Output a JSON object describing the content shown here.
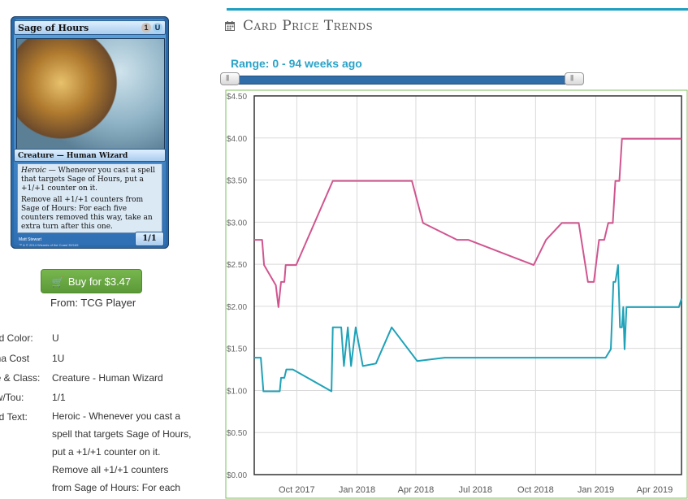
{
  "card": {
    "name": "Sage of Hours",
    "mana": [
      "1",
      "U"
    ],
    "type_line": "Creature — Human Wizard",
    "ability_keyword": "Heroic",
    "ability_1": " — Whenever you cast a spell that targets Sage of Hours, put a +1/+1 counter on it.",
    "ability_2": "Remove all +1/+1 counters from Sage of Hours: For each five counters removed this way, take an extra turn after this one.",
    "pt": "1/1",
    "artist": "Matt Stewart",
    "legal": "™ & © 2014 Wizards of the Coast 39/165"
  },
  "buy": {
    "label": "Buy for $3.47",
    "from": "From: TCG Player"
  },
  "details": {
    "card_color_label": "ard Color:",
    "card_color": "U",
    "mana_cost_label": "ana Cost",
    "mana_cost": "1U",
    "type_label": "pe & Class:",
    "type": "Creature - Human Wizard",
    "powtou_label": "ow/Tou:",
    "powtou": "1/1",
    "text_label": "ard Text:",
    "text_lines": [
      "Heroic - Whenever you cast a",
      "spell that targets Sage of Hours,",
      "put a +1/+1 counter on it.",
      "Remove all +1/+1 counters",
      "from Sage of Hours: For each"
    ]
  },
  "panel": {
    "title": "Card Price Trends",
    "range": "Range: 0 - 94 weeks ago"
  },
  "colors": {
    "accent": "#1ea0c0",
    "foil": "#d0558f",
    "normal": "#1fa2b8"
  },
  "chart_data": {
    "type": "line",
    "ylim": [
      0,
      4.5
    ],
    "y_ticks": [
      "$0.00",
      "$0.50",
      "$1.00",
      "$1.50",
      "$2.00",
      "$2.50",
      "$3.00",
      "$3.50",
      "$4.00",
      "$4.50"
    ],
    "x_ticks": [
      {
        "label": "Oct 2017",
        "x": "2017-10-01"
      },
      {
        "label": "Jan 2018",
        "x": "2018-01-01"
      },
      {
        "label": "Apr 2018",
        "x": "2018-04-01"
      },
      {
        "label": "Jul 2018",
        "x": "2018-07-01"
      },
      {
        "label": "Oct 2018",
        "x": "2018-10-01"
      },
      {
        "label": "Jan 2019",
        "x": "2019-01-01"
      },
      {
        "label": "Apr 2019",
        "x": "2019-04-01"
      }
    ],
    "xlim": [
      "2017-07-28",
      "2019-05-12"
    ],
    "grid": true,
    "series": [
      {
        "color": "#d0558f",
        "points": [
          [
            "2017-07-28",
            2.79
          ],
          [
            "2017-08-09",
            2.79
          ],
          [
            "2017-08-12",
            2.49
          ],
          [
            "2017-08-30",
            2.25
          ],
          [
            "2017-09-03",
            1.99
          ],
          [
            "2017-09-07",
            2.29
          ],
          [
            "2017-09-12",
            2.29
          ],
          [
            "2017-09-14",
            2.49
          ],
          [
            "2017-09-30",
            2.49
          ],
          [
            "2017-11-25",
            3.49
          ],
          [
            "2018-03-26",
            3.49
          ],
          [
            "2018-04-12",
            2.99
          ],
          [
            "2018-06-03",
            2.79
          ],
          [
            "2018-06-20",
            2.79
          ],
          [
            "2018-09-28",
            2.49
          ],
          [
            "2018-10-17",
            2.79
          ],
          [
            "2018-11-10",
            2.99
          ],
          [
            "2018-12-06",
            2.99
          ],
          [
            "2018-12-16",
            2.49
          ],
          [
            "2018-12-20",
            2.29
          ],
          [
            "2018-12-29",
            2.29
          ],
          [
            "2019-01-06",
            2.79
          ],
          [
            "2019-01-14",
            2.79
          ],
          [
            "2019-01-20",
            2.99
          ],
          [
            "2019-01-27",
            2.99
          ],
          [
            "2019-01-31",
            3.49
          ],
          [
            "2019-02-06",
            3.49
          ],
          [
            "2019-02-10",
            3.99
          ],
          [
            "2019-05-12",
            3.99
          ]
        ]
      },
      {
        "color": "#1fa2b8",
        "points": [
          [
            "2017-07-28",
            1.39
          ],
          [
            "2017-08-07",
            1.39
          ],
          [
            "2017-08-11",
            0.99
          ],
          [
            "2017-09-05",
            0.99
          ],
          [
            "2017-09-07",
            1.15
          ],
          [
            "2017-09-12",
            1.15
          ],
          [
            "2017-09-15",
            1.25
          ],
          [
            "2017-09-25",
            1.25
          ],
          [
            "2017-11-23",
            0.99
          ],
          [
            "2017-11-25",
            1.75
          ],
          [
            "2017-12-08",
            1.75
          ],
          [
            "2017-12-12",
            1.29
          ],
          [
            "2017-12-18",
            1.75
          ],
          [
            "2017-12-23",
            1.29
          ],
          [
            "2017-12-30",
            1.75
          ],
          [
            "2018-01-10",
            1.29
          ],
          [
            "2018-01-30",
            1.32
          ],
          [
            "2018-02-23",
            1.75
          ],
          [
            "2018-04-03",
            1.35
          ],
          [
            "2018-05-15",
            1.39
          ],
          [
            "2019-01-16",
            1.39
          ],
          [
            "2019-01-24",
            1.49
          ],
          [
            "2019-01-28",
            2.29
          ],
          [
            "2019-01-31",
            2.29
          ],
          [
            "2019-02-04",
            2.49
          ],
          [
            "2019-02-07",
            1.75
          ],
          [
            "2019-02-10",
            1.75
          ],
          [
            "2019-02-12",
            1.99
          ],
          [
            "2019-02-14",
            1.49
          ],
          [
            "2019-02-17",
            1.99
          ],
          [
            "2019-05-08",
            1.99
          ],
          [
            "2019-05-12",
            2.09
          ]
        ]
      }
    ]
  }
}
